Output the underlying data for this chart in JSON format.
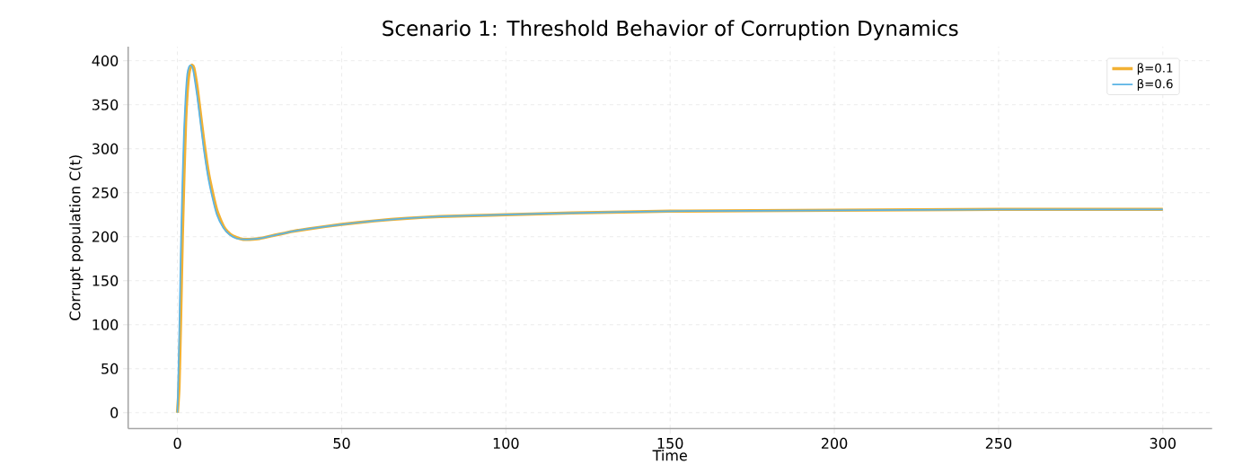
{
  "chart_data": {
    "type": "line",
    "title": "Scenario 1: Threshold Behavior of Corruption Dynamics",
    "xlabel": "Time",
    "ylabel": "Corrupt population C(t)",
    "xlim": [
      -15,
      315
    ],
    "ylim": [
      -18,
      416
    ],
    "xticks": [
      0,
      50,
      100,
      150,
      200,
      250,
      300
    ],
    "yticks": [
      0,
      50,
      100,
      150,
      200,
      250,
      300,
      350,
      400
    ],
    "grid": true,
    "legend": "top right",
    "series": [
      {
        "name": "β=0.1",
        "color": "#f2b134",
        "x": [
          0,
          0.5,
          1,
          1.5,
          2,
          2.5,
          3,
          3.5,
          4,
          4.5,
          5,
          6,
          7,
          8,
          9,
          10,
          12,
          14,
          16,
          18,
          20,
          22,
          25,
          30,
          35,
          40,
          50,
          60,
          70,
          80,
          90,
          100,
          120,
          150,
          200,
          250,
          300
        ],
        "values": [
          0,
          30,
          110,
          200,
          270,
          330,
          365,
          385,
          393,
          395,
          392,
          370,
          340,
          310,
          283,
          262,
          230,
          212,
          203,
          199,
          197,
          197,
          198,
          202,
          206,
          209,
          214,
          218,
          221,
          223,
          224,
          225,
          227,
          229,
          230,
          231,
          231
        ]
      },
      {
        "name": "β=0.6",
        "color": "#5ab4e5",
        "x": [
          0,
          0.5,
          1,
          1.5,
          2,
          2.5,
          3,
          3.5,
          4,
          4.5,
          5,
          6,
          7,
          8,
          9,
          10,
          12,
          14,
          16,
          18,
          20,
          22,
          25,
          30,
          35,
          40,
          50,
          60,
          70,
          80,
          90,
          100,
          120,
          150,
          200,
          250,
          300
        ],
        "values": [
          0,
          80,
          180,
          260,
          320,
          360,
          385,
          393,
          395,
          393,
          385,
          360,
          330,
          300,
          275,
          255,
          225,
          210,
          202,
          198,
          197,
          197,
          198,
          202,
          206,
          209,
          214,
          218,
          221,
          223,
          224,
          225,
          227,
          229,
          230,
          231,
          231
        ]
      }
    ]
  }
}
